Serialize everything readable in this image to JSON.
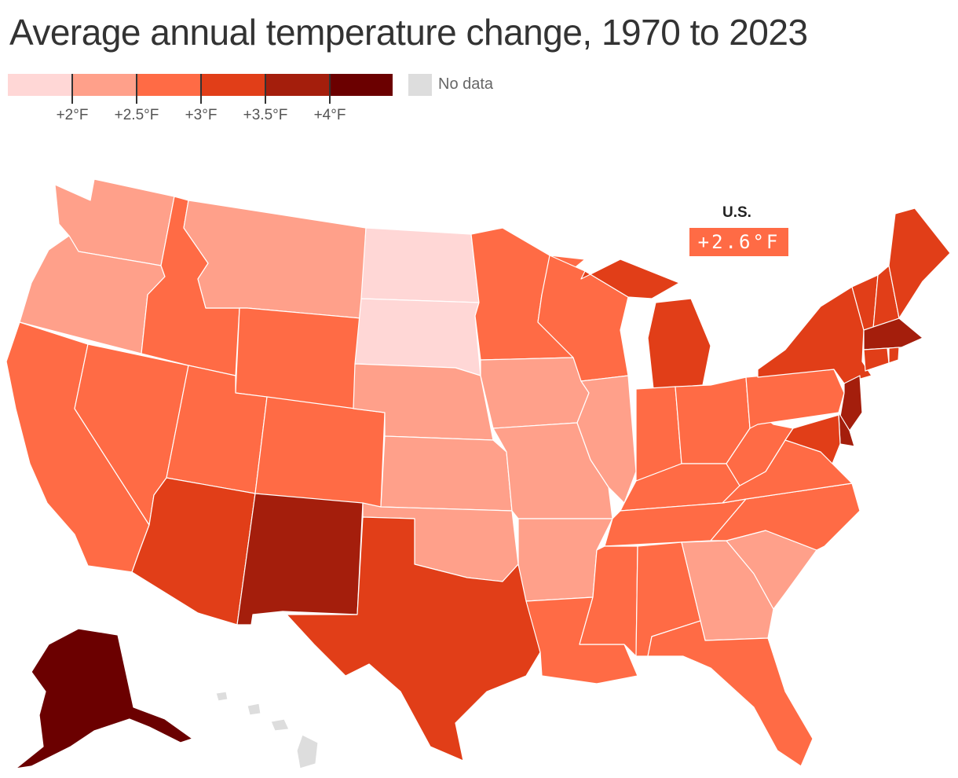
{
  "title": "Average annual temperature change, 1970 to 2023",
  "legend": {
    "colors": [
      "#ffd7d6",
      "#ffa08a",
      "#ff6b45",
      "#e13e18",
      "#a41e0c",
      "#6b0000"
    ],
    "ticks": [
      "+2°F",
      "+2.5°F",
      "+3°F",
      "+3.5°F",
      "+4°F"
    ],
    "nodata_label": "No data",
    "nodata_color": "#dddddd"
  },
  "national": {
    "label": "U.S.",
    "value": "+2.6°F"
  },
  "map_data": {
    "type": "choropleth",
    "unit": "°F",
    "bins": [
      "<+2",
      "+2 to +2.5",
      "+2.5 to +3",
      "+3 to +3.5",
      "+3.5 to +4",
      ">+4"
    ],
    "states": {
      "WA": 1,
      "OR": 1,
      "CA": 2,
      "NV": 2,
      "ID": 2,
      "MT": 1,
      "WY": 2,
      "UT": 2,
      "AZ": 3,
      "CO": 2,
      "NM": 4,
      "ND": 0,
      "SD": 0,
      "NE": 1,
      "KS": 1,
      "OK": 1,
      "TX": 3,
      "MN": 2,
      "IA": 1,
      "MO": 1,
      "AR": 1,
      "LA": 2,
      "WI": 2,
      "IL": 1,
      "MI": 3,
      "IN": 2,
      "OH": 2,
      "KY": 2,
      "TN": 2,
      "MS": 2,
      "AL": 2,
      "GA": 1,
      "FL": 2,
      "SC": 1,
      "NC": 2,
      "VA": 2,
      "WV": 2,
      "PA": 2,
      "NY": 3,
      "VT": 3,
      "NH": 3,
      "ME": 3,
      "MA": 4,
      "RI": 3,
      "CT": 3,
      "NJ": 4,
      "DE": 4,
      "MD": 3,
      "AK": 5,
      "HI": -1
    }
  }
}
